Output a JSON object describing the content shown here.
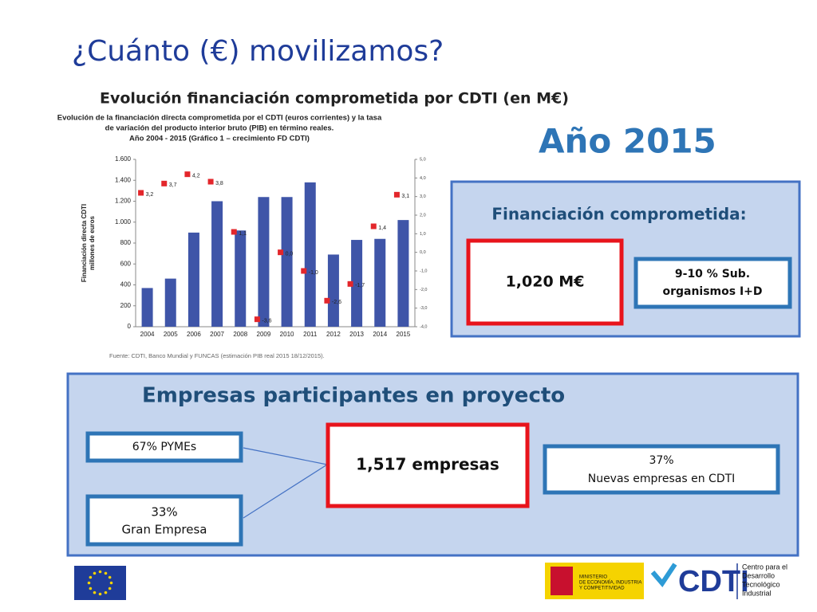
{
  "header": {
    "title": "¿Cuánto (€) movilizamos?",
    "subtitle": "Evolución financiación comprometida por CDTI  (en M€)",
    "year": "Año 2015"
  },
  "chart_data": {
    "type": "bar",
    "title": [
      "Evolución de la financiación directa comprometida por el CDTI (euros corrientes) y la tasa",
      "de variación del producto interior bruto (PIB) en término reales.",
      "Año 2004 - 2015 (Gráfico 1 – crecimiento FD CDTI)"
    ],
    "ylabel": [
      "Financiación directa CDTI",
      "millones de euros"
    ],
    "source": "Fuente: CDTI, Banco Mundial y FUNCAS (estimación PIB real 2015 18/12/2015).",
    "categories": [
      "2004",
      "2005",
      "2006",
      "2007",
      "2008",
      "2009",
      "2010",
      "2011",
      "2012",
      "2013",
      "2014",
      "2015"
    ],
    "series": [
      {
        "type": "bar",
        "color": "#3f55a8",
        "values": [
          370,
          460,
          900,
          1200,
          920,
          1240,
          1240,
          1380,
          690,
          830,
          840,
          1020
        ]
      },
      {
        "type": "scatter",
        "axis": "y2",
        "color": "#e3262b",
        "values": [
          3.2,
          3.7,
          4.2,
          3.8,
          1.1,
          -3.6,
          0.0,
          -1.0,
          -2.6,
          -1.7,
          1.4,
          3.1
        ],
        "value_labels": [
          "3,2",
          "3,7",
          "4,2",
          "3,8",
          "1,1",
          "-3,6",
          "0,0",
          "-1,0",
          "-2,6",
          "-1,7",
          "1,4",
          "3,1"
        ]
      }
    ],
    "ylim": [
      0,
      1600
    ],
    "yticks": [
      0,
      {
        "value": 200,
        "label": "200"
      },
      {
        "value": 400,
        "label": "400"
      },
      {
        "value": 600,
        "label": "600"
      },
      {
        "value": 800,
        "label": "800"
      },
      {
        "value": 1000,
        "label": "1.000"
      },
      {
        "value": 1200,
        "label": "1.200"
      },
      {
        "value": 1400,
        "label": "1.400"
      },
      {
        "value": 1600,
        "label": "1.600"
      }
    ],
    "y2lim": [
      -4,
      5
    ],
    "y2ticks": [
      {
        "value": -4,
        "label": "-4,0"
      },
      {
        "value": -3,
        "label": "-3,0"
      },
      {
        "value": -2,
        "label": "-2,0"
      },
      {
        "value": -1,
        "label": "-1,0"
      },
      {
        "value": 0,
        "label": "0,0"
      },
      {
        "value": 1,
        "label": "1,0"
      },
      {
        "value": 2,
        "label": "2,0"
      },
      {
        "value": 3,
        "label": "3,0"
      },
      {
        "value": 4,
        "label": "4,0"
      },
      {
        "value": 5,
        "label": "5,0"
      }
    ]
  },
  "funding": {
    "heading": "Financiación comprometida:",
    "amount": "1,020 M€",
    "share": [
      "9-10 % Sub.",
      "organismos I+D"
    ]
  },
  "companies": {
    "heading": "Empresas  participantes en proyecto",
    "sme": "67% PYMEs",
    "large": [
      "33%",
      "Gran Empresa"
    ],
    "total": "1,517 empresas",
    "new": [
      "37%",
      "Nuevas empresas en CDTI"
    ]
  },
  "footer": {
    "ministry": [
      "MINISTERIO",
      "DE ECONOMÍA, INDUSTRIA",
      "Y COMPETITIVIDAD"
    ],
    "brand": "CDTI",
    "brand_name": [
      "Centro para el",
      "Desarrollo",
      "Tecnológico",
      "Industrial"
    ]
  }
}
